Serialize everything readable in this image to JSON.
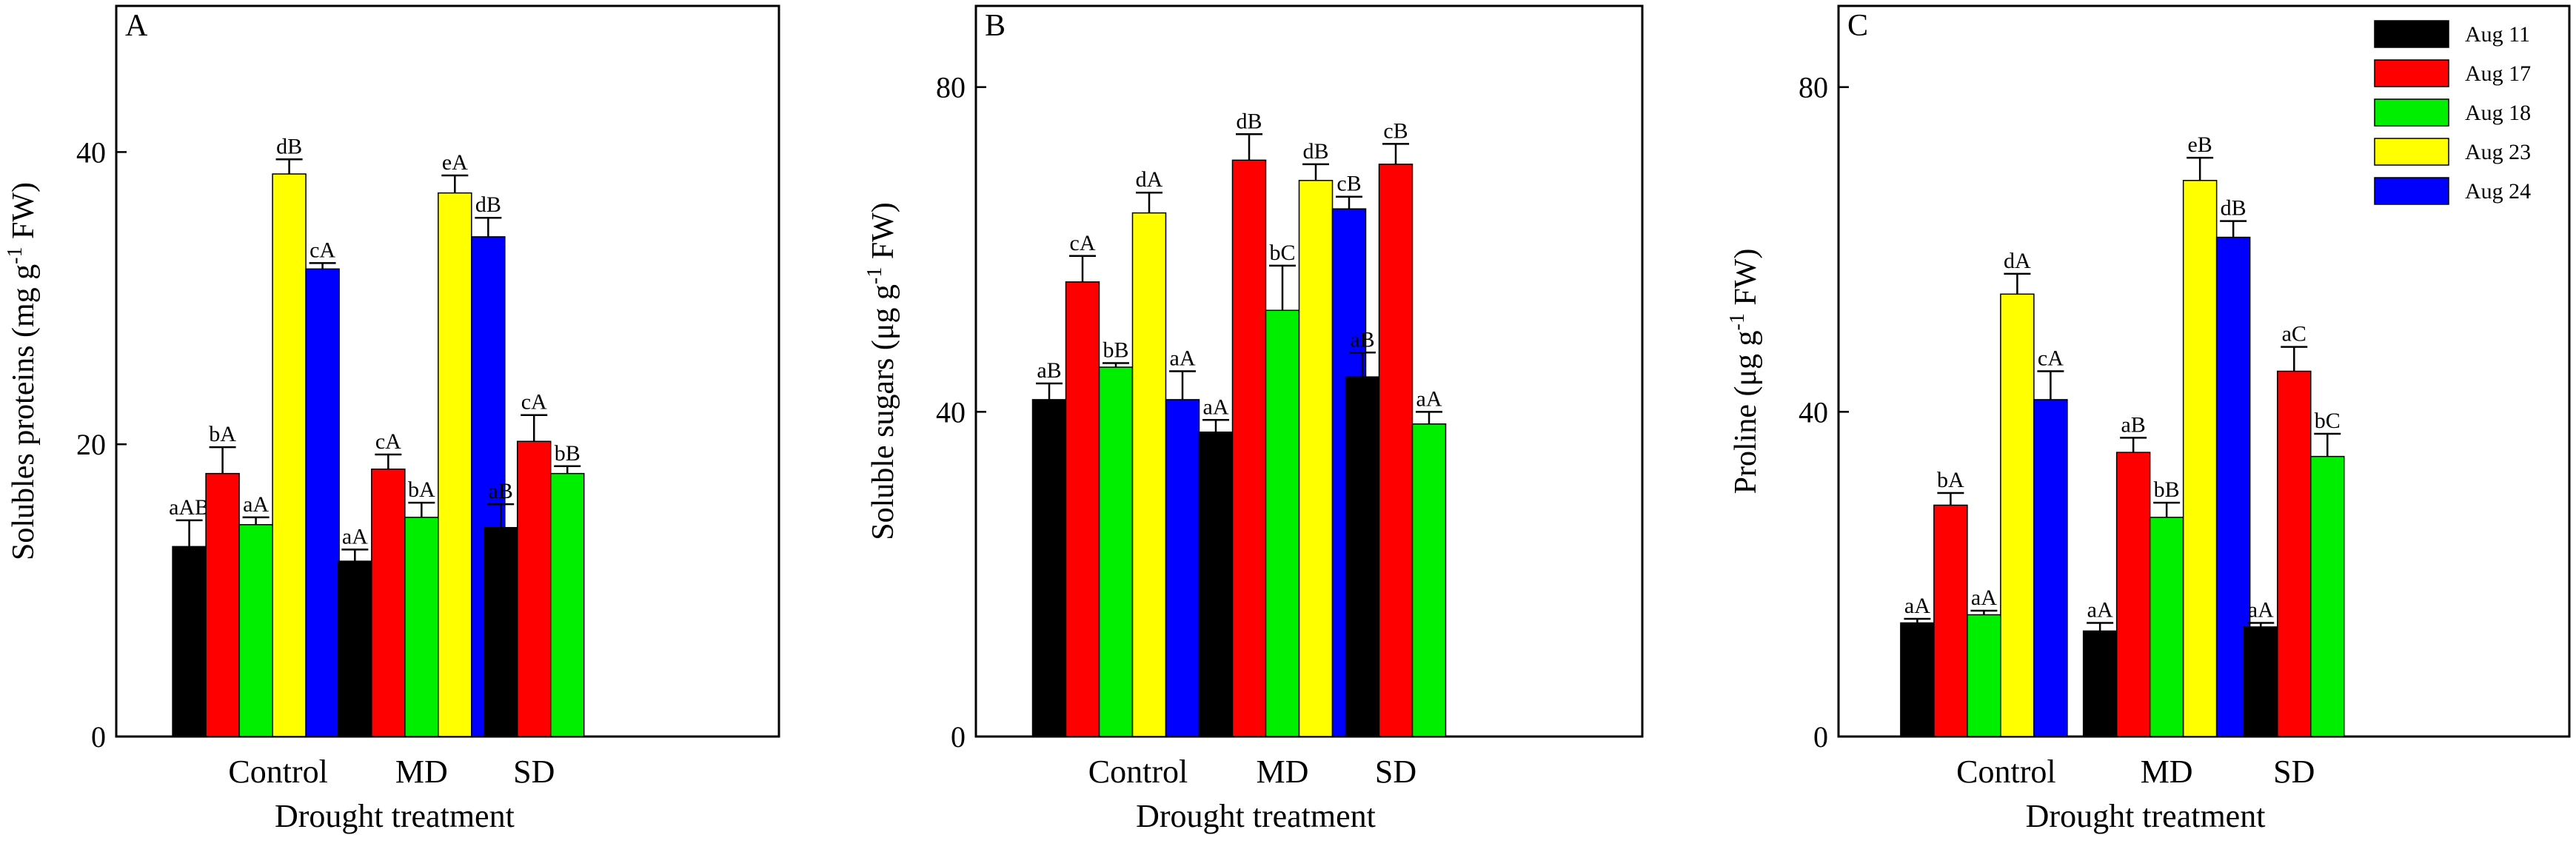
{
  "chart_data": [
    {
      "type": "bar",
      "panel_label": "A",
      "title": "",
      "xlabel": "Drought treatment",
      "ylabel": "Solubles proteins (mg g",
      "ylabel_sup": "-1",
      "ylabel_tail": " FW)",
      "ylim": [
        0,
        50
      ],
      "yticks": [
        "0",
        "20",
        "40"
      ],
      "ytick_values": [
        0,
        20,
        40
      ],
      "categories": [
        "Control",
        "MD",
        "SD"
      ],
      "series": [
        {
          "name": "Aug 11",
          "values": [
            13,
            12,
            14.3
          ],
          "errors": [
            1.8,
            0.8,
            1.6
          ],
          "labels": [
            "aAB",
            "aA",
            "aB"
          ]
        },
        {
          "name": "Aug 17",
          "values": [
            18,
            18.3,
            20.2
          ],
          "errors": [
            1.8,
            1.0,
            1.8
          ],
          "labels": [
            "bA",
            "cA",
            "cA"
          ]
        },
        {
          "name": "Aug 18",
          "values": [
            14.5,
            15,
            18
          ],
          "errors": [
            0.5,
            1.0,
            0.5
          ],
          "labels": [
            "aA",
            "bA",
            "bB"
          ]
        },
        {
          "name": "Aug 23",
          "values": [
            38.5,
            37.2,
            null
          ],
          "errors": [
            1.0,
            1.2,
            null
          ],
          "labels": [
            "dB",
            "eA",
            ""
          ]
        },
        {
          "name": "Aug 24",
          "values": [
            32,
            34.2,
            null
          ],
          "errors": [
            0.4,
            1.3,
            null
          ],
          "labels": [
            "cA",
            "dB",
            ""
          ]
        }
      ]
    },
    {
      "type": "bar",
      "panel_label": "B",
      "title": "",
      "xlabel": "Drought treatment",
      "ylabel": "Soluble sugars (μg g",
      "ylabel_sup": "-1",
      "ylabel_tail": " FW)",
      "ylim": [
        0,
        90
      ],
      "yticks": [
        "0",
        "40",
        "80"
      ],
      "ytick_values": [
        0,
        40,
        80
      ],
      "categories": [
        "Control",
        "MD",
        "SD"
      ],
      "series": [
        {
          "name": "Aug 11",
          "values": [
            41.5,
            37.5,
            44.3
          ],
          "errors": [
            2.0,
            1.5,
            3.0
          ],
          "labels": [
            "aB",
            "aA",
            "aB"
          ]
        },
        {
          "name": "Aug 17",
          "values": [
            56,
            71,
            70.5
          ],
          "errors": [
            3.2,
            3.2,
            2.5
          ],
          "labels": [
            "cA",
            "dB",
            "cB"
          ]
        },
        {
          "name": "Aug 18",
          "values": [
            45.5,
            52.5,
            38.5
          ],
          "errors": [
            0.5,
            5.5,
            1.5
          ],
          "labels": [
            "bB",
            "bC",
            "aA"
          ]
        },
        {
          "name": "Aug 23",
          "values": [
            64.5,
            68.5,
            null
          ],
          "errors": [
            2.5,
            2.0,
            null
          ],
          "labels": [
            "dA",
            "dB",
            ""
          ]
        },
        {
          "name": "Aug 24",
          "values": [
            41.5,
            65,
            null
          ],
          "errors": [
            3.5,
            1.5,
            null
          ],
          "labels": [
            "aA",
            "cB",
            ""
          ]
        }
      ]
    },
    {
      "type": "bar",
      "panel_label": "C",
      "title": "",
      "xlabel": "Drought treatment",
      "ylabel": "Proline (μg g",
      "ylabel_sup": "-1",
      "ylabel_tail": " FW)",
      "ylim": [
        0,
        90
      ],
      "yticks": [
        "0",
        "40",
        "80"
      ],
      "ytick_values": [
        0,
        40,
        80
      ],
      "categories": [
        "Control",
        "MD",
        "SD"
      ],
      "legend_position": "top-right",
      "series": [
        {
          "name": "Aug 11",
          "values": [
            14,
            13,
            13.5
          ],
          "errors": [
            0.5,
            1.0,
            0.5
          ],
          "labels": [
            "aA",
            "aA",
            "aA"
          ]
        },
        {
          "name": "Aug 17",
          "values": [
            28.5,
            35,
            45
          ],
          "errors": [
            1.5,
            1.8,
            3.0
          ],
          "labels": [
            "bA",
            "aB",
            "aC"
          ]
        },
        {
          "name": "Aug 18",
          "values": [
            15,
            27,
            34.5
          ],
          "errors": [
            0.5,
            1.8,
            2.8
          ],
          "labels": [
            "aA",
            "bB",
            "bC"
          ]
        },
        {
          "name": "Aug 23",
          "values": [
            54.5,
            68.5,
            null
          ],
          "errors": [
            2.5,
            2.8,
            null
          ],
          "labels": [
            "dA",
            "eB",
            ""
          ]
        },
        {
          "name": "Aug 24",
          "values": [
            41.5,
            61.5,
            null
          ],
          "errors": [
            3.5,
            2.0,
            null
          ],
          "labels": [
            "cA",
            "dB",
            ""
          ]
        }
      ]
    }
  ],
  "colors": {
    "Aug 11": "#000000",
    "Aug 17": "#ff0000",
    "Aug 18": "#00ee00",
    "Aug 23": "#ffff00",
    "Aug 24": "#0000ff"
  }
}
